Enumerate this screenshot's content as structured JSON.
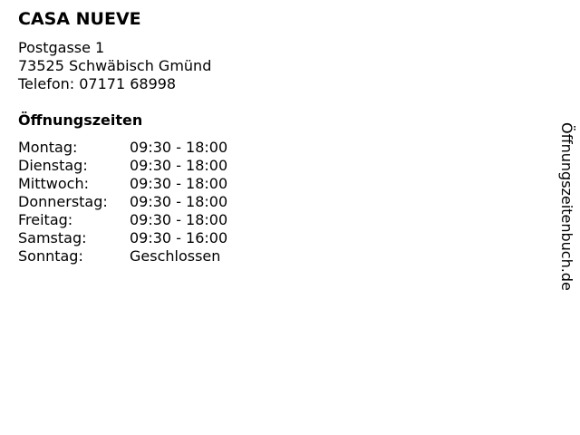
{
  "business": {
    "name": "CASA NUEVE",
    "street": "Postgasse 1",
    "city": "73525 Schwäbisch Gmünd",
    "phone": "Telefon: 07171 68998"
  },
  "hours_title": "Öffnungszeiten",
  "hours": [
    {
      "day": "Montag:",
      "time": "09:30 - 18:00"
    },
    {
      "day": "Dienstag:",
      "time": "09:30 - 18:00"
    },
    {
      "day": "Mittwoch:",
      "time": "09:30 - 18:00"
    },
    {
      "day": "Donnerstag:",
      "time": "09:30 - 18:00"
    },
    {
      "day": "Freitag:",
      "time": "09:30 - 18:00"
    },
    {
      "day": "Samstag:",
      "time": "09:30 - 16:00"
    },
    {
      "day": "Sonntag:",
      "time": "Geschlossen"
    }
  ],
  "watermark": "Öffnungszeitenbuch.de"
}
